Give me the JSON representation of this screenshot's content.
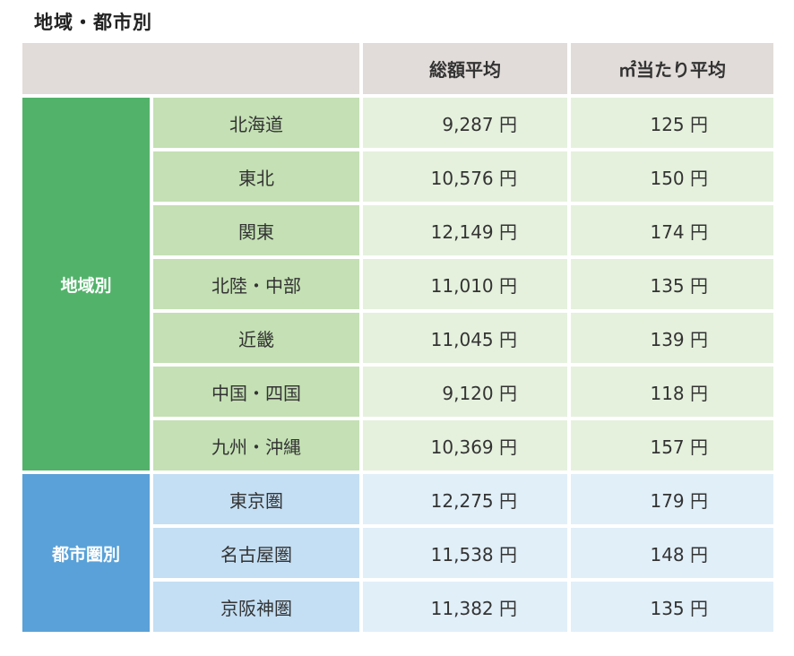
{
  "title": "地域・都市別",
  "header": {
    "col_total": "総額平均",
    "col_per_m2": "㎡当たり平均"
  },
  "groups": [
    {
      "label": "地域別",
      "rows": [
        {
          "name": "北海道",
          "total": "9,287 円",
          "per_m2": "125 円"
        },
        {
          "name": "東北",
          "total": "10,576 円",
          "per_m2": "150 円"
        },
        {
          "name": "関東",
          "total": "12,149 円",
          "per_m2": "174 円"
        },
        {
          "name": "北陸・中部",
          "total": "11,010 円",
          "per_m2": "135 円"
        },
        {
          "name": "近畿",
          "total": "11,045 円",
          "per_m2": "139 円"
        },
        {
          "name": "中国・四国",
          "total": "9,120 円",
          "per_m2": "118 円"
        },
        {
          "name": "九州・沖縄",
          "total": "10,369 円",
          "per_m2": "157 円"
        }
      ]
    },
    {
      "label": "都市圏別",
      "rows": [
        {
          "name": "東京圏",
          "total": "12,275 円",
          "per_m2": "179 円"
        },
        {
          "name": "名古屋圏",
          "total": "11,538 円",
          "per_m2": "148 円"
        },
        {
          "name": "京阪神圏",
          "total": "11,382 円",
          "per_m2": "135 円"
        }
      ]
    }
  ],
  "colors": {
    "header_bg": "#e1dcd9",
    "region_group": "#52b26a",
    "region_name": "#c4e0b4",
    "region_value": "#e5f1dd",
    "city_group": "#59a1d8",
    "city_name": "#c4dff4",
    "city_value": "#e1eff9"
  }
}
